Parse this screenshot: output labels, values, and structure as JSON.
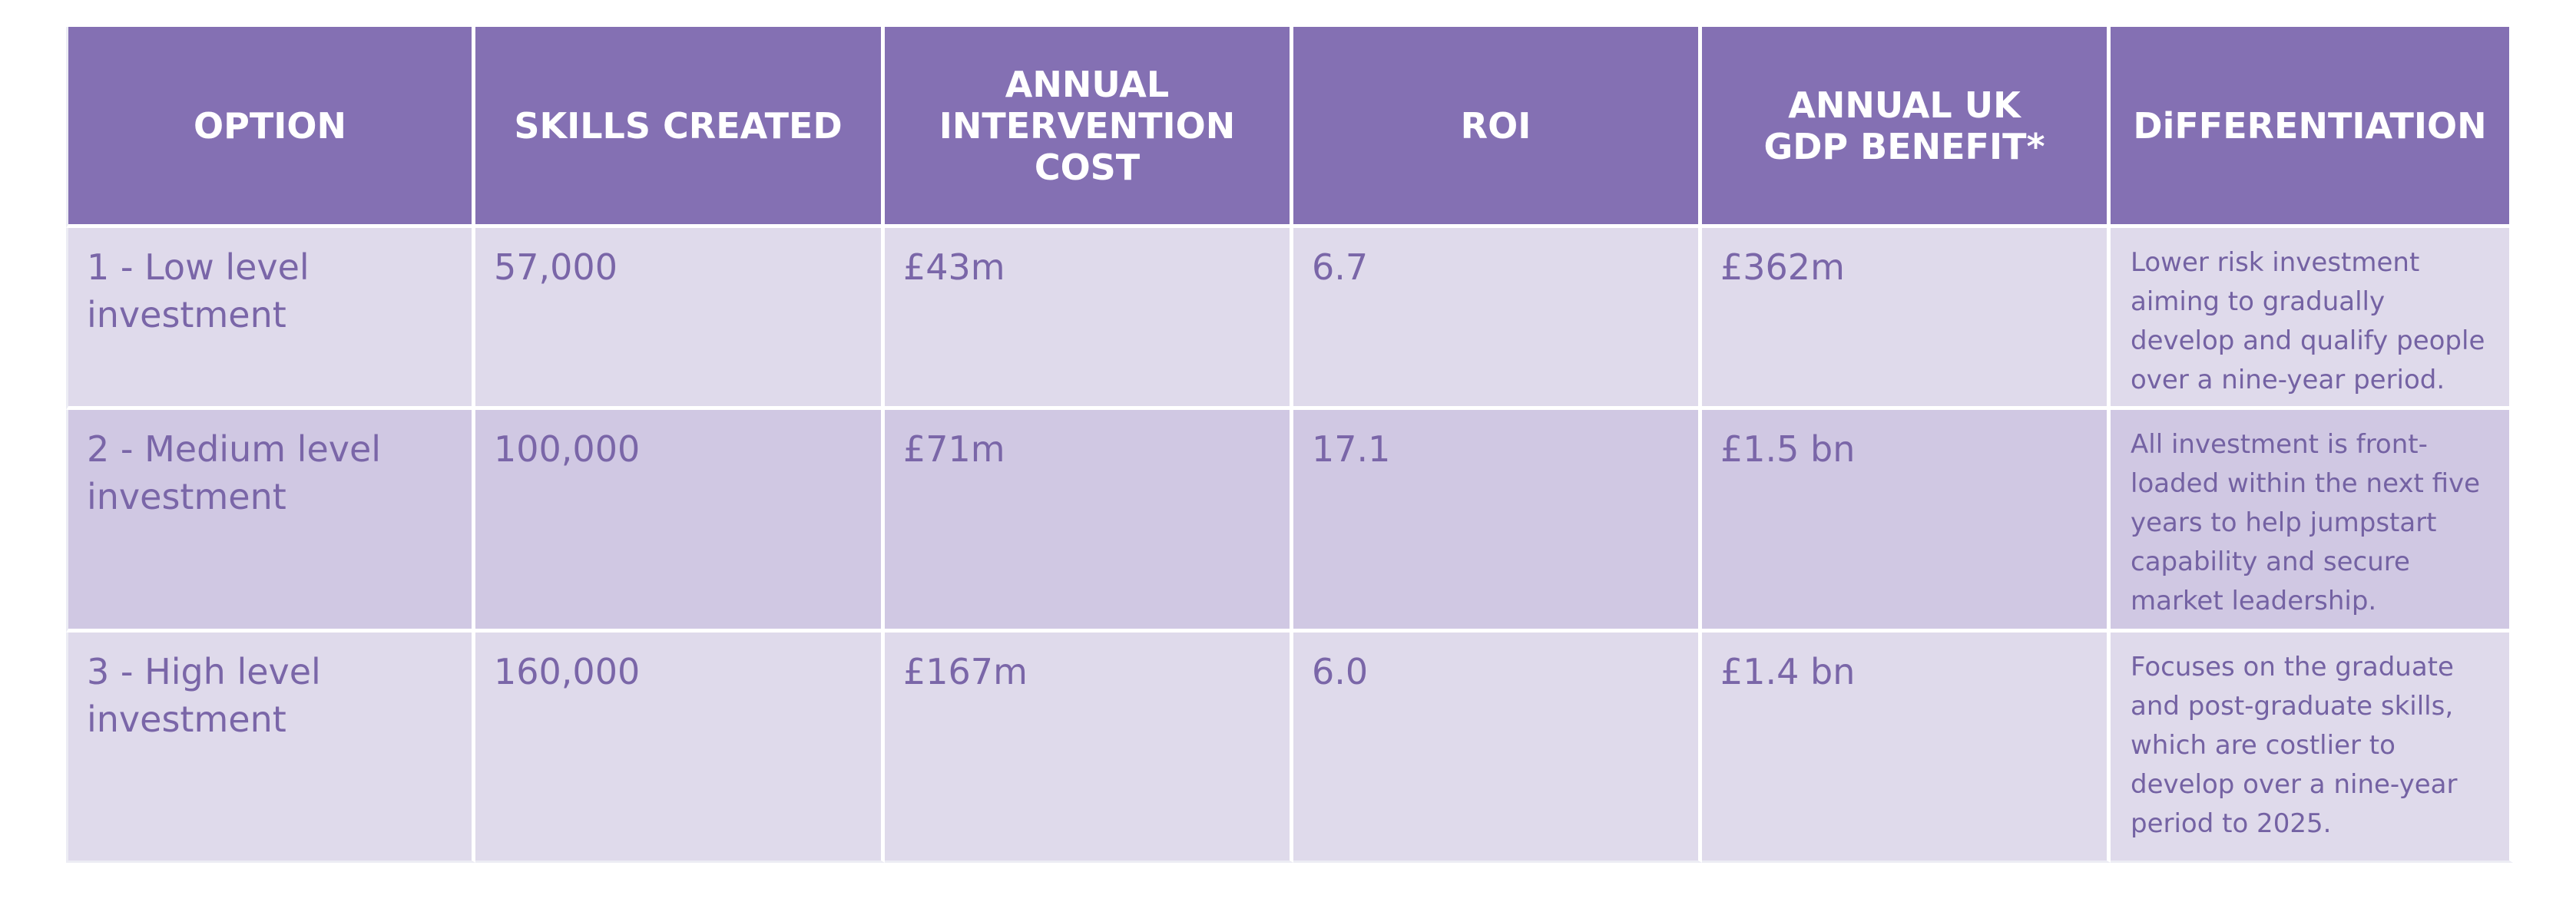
{
  "table": {
    "headers": [
      "OPTION",
      "SKILLS CREATED",
      "ANNUAL INTERVENTION COST",
      "ROI",
      "ANNUAL UK GDP BENEFIT*",
      "DiFFERENTIATION"
    ],
    "rows": [
      {
        "option": "1 - Low level investment",
        "skills_created": "57,000",
        "annual_intervention_cost": "£43m",
        "roi": "6.7",
        "annual_uk_gdp_benefit": "£362m",
        "differentiation": "Lower risk investment aiming to gradually develop and qualify people over a nine-year period."
      },
      {
        "option": "2 - Medium level investment",
        "skills_created": "100,000",
        "annual_intervention_cost": "£71m",
        "roi": "17.1",
        "annual_uk_gdp_benefit": "£1.5 bn",
        "differentiation": "All investment is front-loaded within the next five years to help jumpstart capability and secure market leadership."
      },
      {
        "option": "3 - High level investment",
        "skills_created": "160,000",
        "annual_intervention_cost": "£167m",
        "roi": "6.0",
        "annual_uk_gdp_benefit": "£1.4 bn",
        "differentiation": "Focuses on the graduate and post-graduate skills, which are costlier to develop over a nine-year period to 2025."
      }
    ]
  },
  "colors": {
    "header_bg": "#8470b3",
    "header_text": "#ffffff",
    "row_light": "#dfdaeb",
    "row_dark": "#d0c8e3",
    "cell_text": "#7a66a8"
  }
}
